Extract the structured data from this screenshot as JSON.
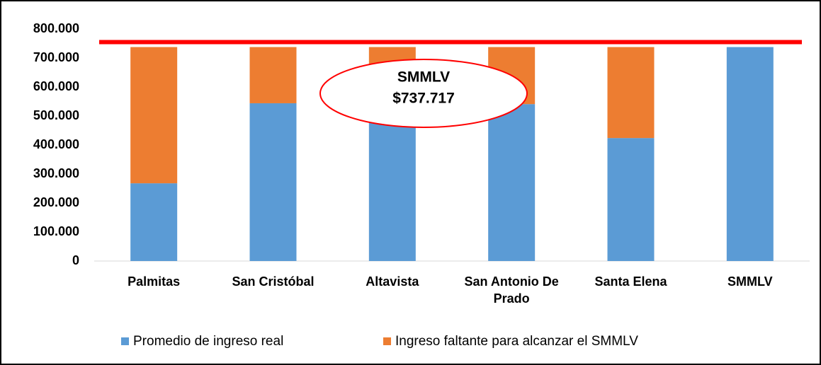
{
  "chart_data": {
    "type": "stacked_bar",
    "categories": [
      "Palmitas",
      "San Cristóbal",
      "Altavista",
      "San Antonio De Prado",
      "Santa Elena",
      "SMMLV"
    ],
    "series": [
      {
        "name": "Promedio de ingreso real",
        "color": "#5b9bd5",
        "values": [
          268000,
          544000,
          520000,
          541000,
          424000,
          737717
        ]
      },
      {
        "name": "Ingreso faltante para alcanzar el SMMLV",
        "color": "#ed7d31",
        "values": [
          469717,
          193717,
          217717,
          196717,
          313717,
          0
        ]
      }
    ],
    "ylim": [
      0,
      800000
    ],
    "yticks": [
      0,
      {
        "value": 100000,
        "label": "100.000"
      },
      {
        "value": 200000,
        "label": "200.000"
      },
      {
        "value": 300000,
        "label": "300.000"
      },
      {
        "value": 400000,
        "label": "400.000"
      },
      {
        "value": 500000,
        "label": "500.000"
      },
      {
        "value": 600000,
        "label": "600.000"
      },
      {
        "value": 700000,
        "label": "700.000"
      },
      {
        "value": 800000,
        "label": "800.000"
      }
    ],
    "reference_line": {
      "value": 755000,
      "color": "#ff0000"
    },
    "annotation": [
      "SMMLV",
      "$737.717"
    ],
    "legend": "bottom"
  }
}
